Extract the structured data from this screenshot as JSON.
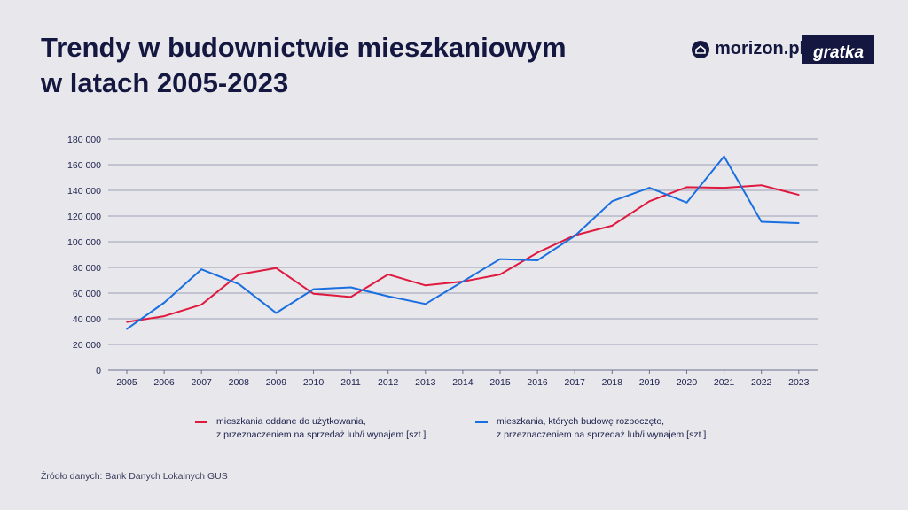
{
  "title": "Trendy w budownictwie mieszkaniowym\nw latach 2005-2023",
  "brands": {
    "morizon": "morizon.pl",
    "gratka": "gratka"
  },
  "source": "Źródło danych: Bank Danych Lokalnych GUS",
  "colors": {
    "series1": "#e0193f",
    "series2": "#1a6fe0",
    "grid": "#9c9fb3",
    "text": "#1b1f4a"
  },
  "chart_data": {
    "type": "line",
    "x": [
      "2005",
      "2006",
      "2007",
      "2008",
      "2009",
      "2010",
      "2011",
      "2012",
      "2013",
      "2014",
      "2015",
      "2016",
      "2017",
      "2018",
      "2019",
      "2020",
      "2021",
      "2022",
      "2023"
    ],
    "ylim": [
      0,
      180000
    ],
    "yticks": [
      0,
      20000,
      40000,
      60000,
      80000,
      100000,
      120000,
      140000,
      160000,
      180000
    ],
    "ytick_labels": [
      "0",
      "20 000",
      "40 000",
      "60 000",
      "80 000",
      "100 000",
      "120 000",
      "140 000",
      "160 000",
      "180 000"
    ],
    "grid": true,
    "legend_position": "bottom",
    "series": [
      {
        "name": "mieszkania oddane do użytkowania,\nz przeznaczeniem na sprzedaż lub/i wynajem [szt.]",
        "color": "#e0193f",
        "values": [
          37500,
          42000,
          51000,
          74500,
          79500,
          59500,
          57000,
          74500,
          66000,
          69000,
          74500,
          91500,
          105000,
          112500,
          131500,
          142500,
          142000,
          144000,
          136500
        ]
      },
      {
        "name": "mieszkania, których budowę rozpoczęto,\nz przeznaczeniem na sprzedaż lub/i wynajem [szt.]",
        "color": "#1a6fe0",
        "values": [
          32000,
          52500,
          78500,
          67000,
          44500,
          63000,
          64500,
          57500,
          51500,
          69000,
          86500,
          85500,
          104500,
          131500,
          142000,
          130500,
          166500,
          115500,
          114500
        ]
      }
    ]
  }
}
